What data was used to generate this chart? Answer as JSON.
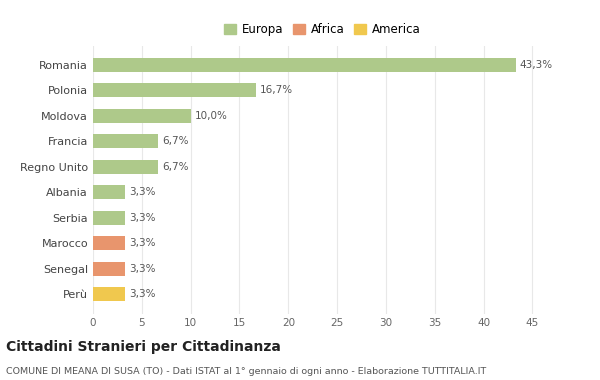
{
  "categories": [
    "Romania",
    "Polonia",
    "Moldova",
    "Francia",
    "Regno Unito",
    "Albania",
    "Serbia",
    "Marocco",
    "Senegal",
    "Perù"
  ],
  "values": [
    43.3,
    16.7,
    10.0,
    6.7,
    6.7,
    3.3,
    3.3,
    3.3,
    3.3,
    3.3
  ],
  "labels": [
    "43,3%",
    "16,7%",
    "10,0%",
    "6,7%",
    "6,7%",
    "3,3%",
    "3,3%",
    "3,3%",
    "3,3%",
    "3,3%"
  ],
  "colors": [
    "#aec98a",
    "#aec98a",
    "#aec98a",
    "#aec98a",
    "#aec98a",
    "#aec98a",
    "#aec98a",
    "#e8956d",
    "#e8956d",
    "#f0c84e"
  ],
  "legend_labels": [
    "Europa",
    "Africa",
    "America"
  ],
  "legend_colors": [
    "#aec98a",
    "#e8956d",
    "#f0c84e"
  ],
  "title": "Cittadini Stranieri per Cittadinanza",
  "subtitle": "COMUNE DI MEANA DI SUSA (TO) - Dati ISTAT al 1° gennaio di ogni anno - Elaborazione TUTTITALIA.IT",
  "xlim": [
    0,
    47
  ],
  "xticks": [
    0,
    5,
    10,
    15,
    20,
    25,
    30,
    35,
    40,
    45
  ],
  "background_color": "#ffffff",
  "plot_bg_color": "#ffffff",
  "grid_color": "#e8e8e8",
  "bar_height": 0.55
}
